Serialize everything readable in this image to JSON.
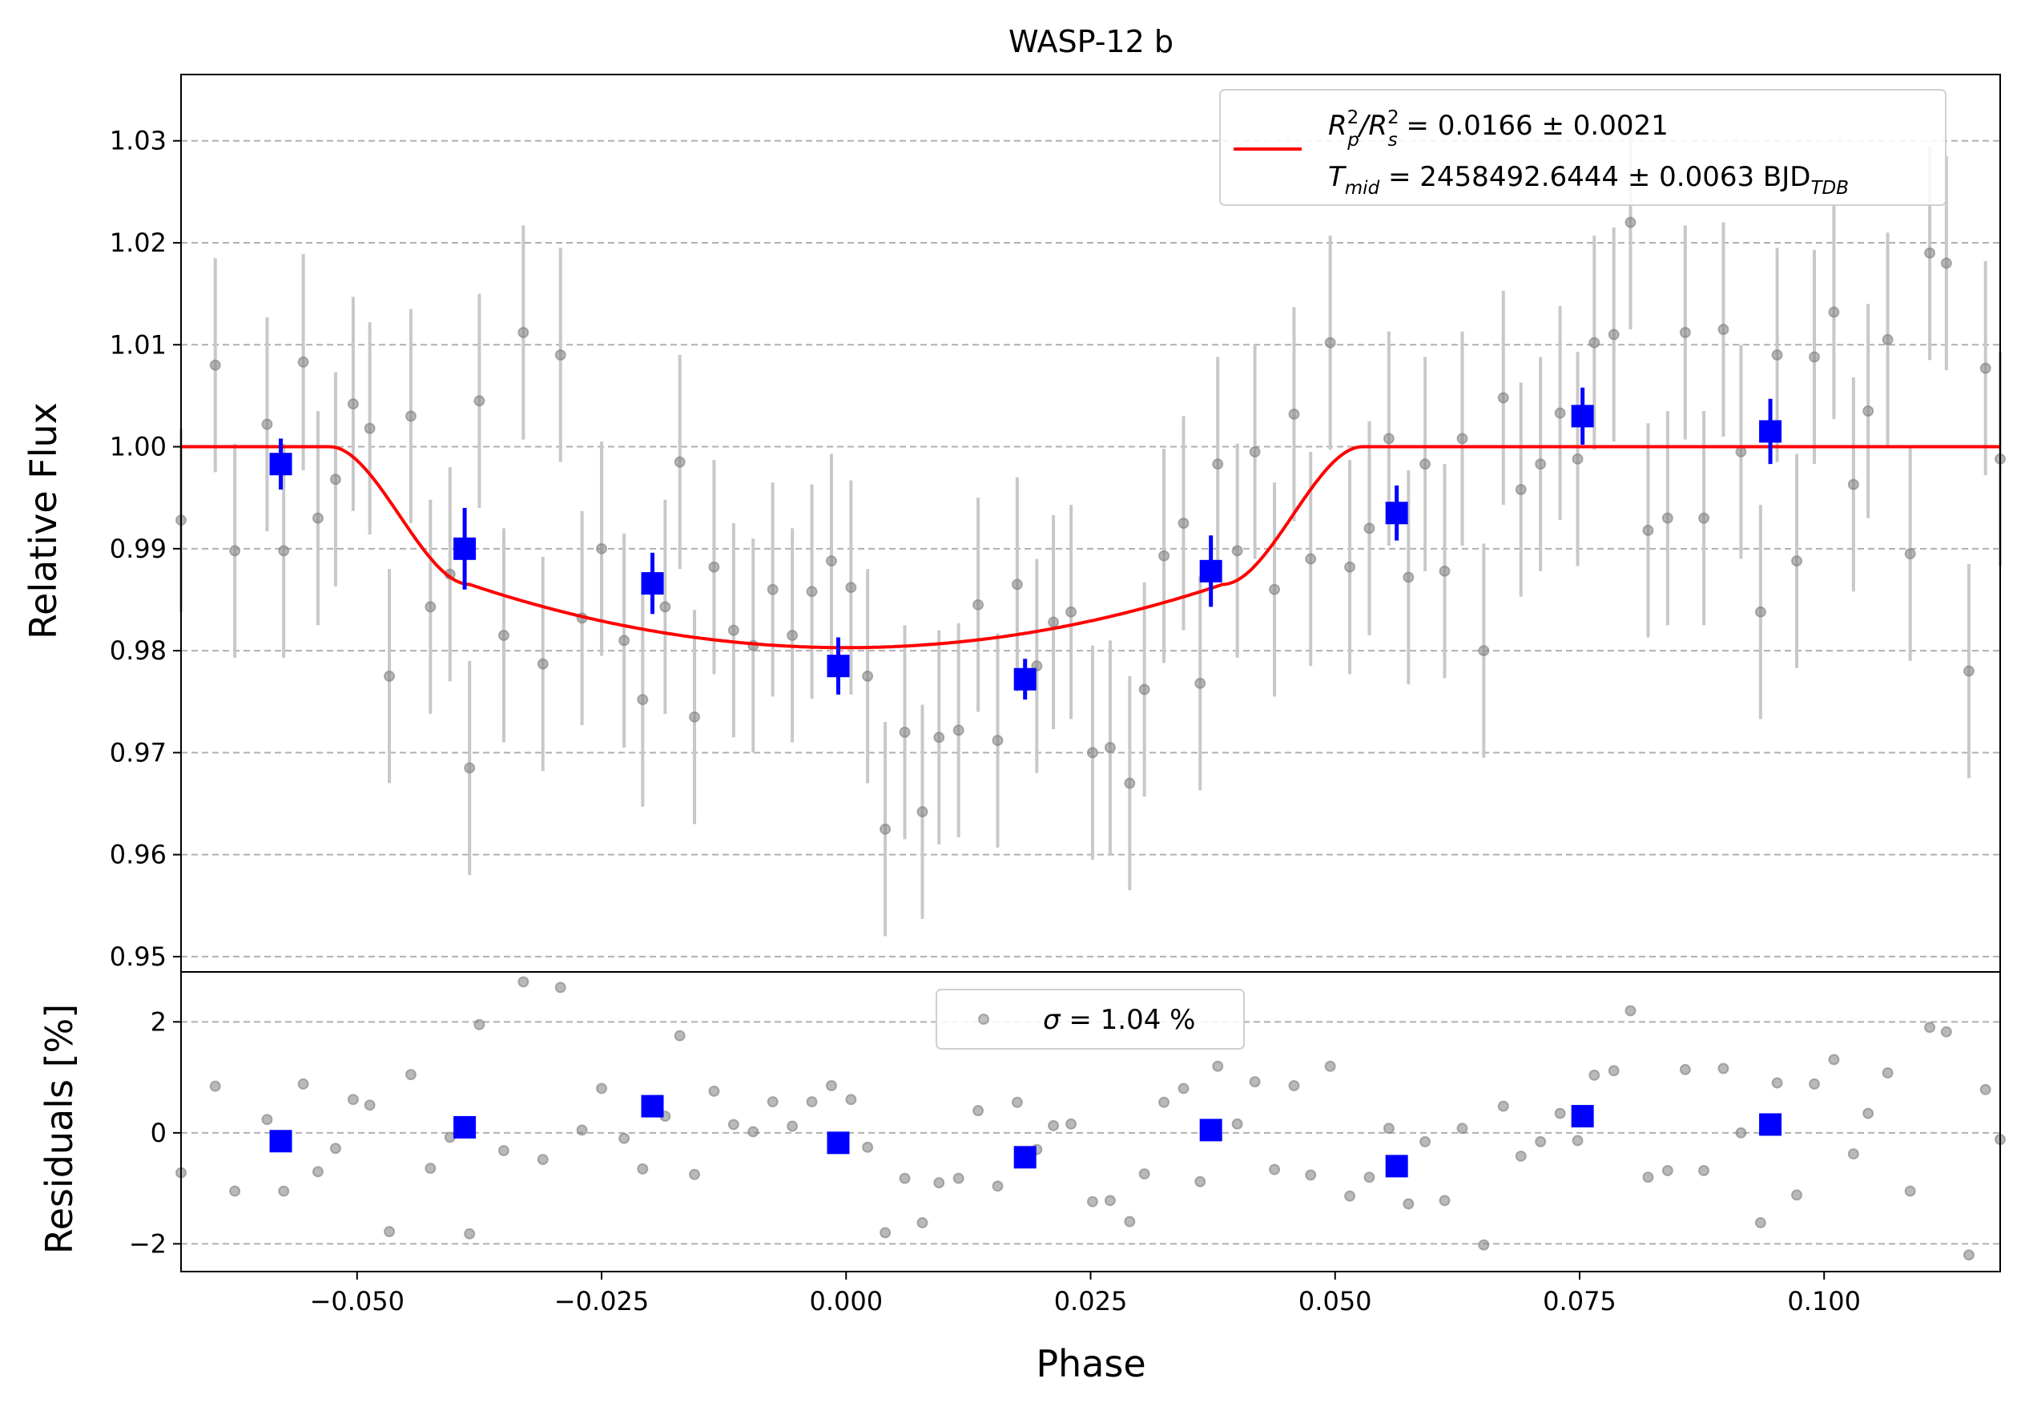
{
  "chart_data": {
    "type": "scatter",
    "title": "WASP-12 b",
    "xlabel": "Phase",
    "xlim": [
      -0.068,
      0.118
    ],
    "xticks": [
      -0.05,
      -0.025,
      0.0,
      0.025,
      0.05,
      0.075,
      0.1
    ],
    "xtick_labels": [
      "−0.050",
      "−0.025",
      "0.000",
      "0.025",
      "0.050",
      "0.075",
      "0.100"
    ],
    "grid": "horizontal dashed",
    "colors": {
      "raw": "#808080",
      "errorbar": "#c8c8c8",
      "binned": "#0000ff",
      "model": "#ff0000"
    },
    "flux_panel": {
      "ylabel": "Relative Flux",
      "ylim": [
        0.9485,
        1.0365
      ],
      "yticks": [
        0.95,
        0.96,
        0.97,
        0.98,
        0.99,
        1.0,
        1.01,
        1.02,
        1.03
      ],
      "ytick_labels": [
        "0.95",
        "0.96",
        "0.97",
        "0.98",
        "0.99",
        "1.00",
        "1.01",
        "1.02",
        "1.03"
      ],
      "legend": {
        "position": "top-right",
        "line1_a": "R",
        "line1_a_sup": "2",
        "line1_a_sub": "p",
        "line1_b": "/R",
        "line1_b_sup": "2",
        "line1_b_sub": "s",
        "line1_c": " = 0.0166 ± 0.0021",
        "line2_a": "T",
        "line2_a_sub": "mid",
        "line2_b": " = 2458492.6444 ± 0.0063 BJD",
        "line2_b_sub": "TDB"
      },
      "raw_points": [
        [
          -0.068,
          0.9928,
          0.009
        ],
        [
          -0.0645,
          1.008,
          0.0105
        ],
        [
          -0.0625,
          0.9898,
          0.0105
        ],
        [
          -0.0592,
          1.0022,
          0.0105
        ],
        [
          -0.0575,
          0.9898,
          0.0105
        ],
        [
          -0.0555,
          1.0083,
          0.0106
        ],
        [
          -0.054,
          0.993,
          0.0105
        ],
        [
          -0.0522,
          0.9968,
          0.0105
        ],
        [
          -0.0504,
          1.0042,
          0.0105
        ],
        [
          -0.0487,
          1.0018,
          0.0104
        ],
        [
          -0.0467,
          0.9775,
          0.0105
        ],
        [
          -0.0445,
          1.003,
          0.0105
        ],
        [
          -0.0425,
          0.9843,
          0.0105
        ],
        [
          -0.0405,
          0.9875,
          0.0105
        ],
        [
          -0.0385,
          0.9685,
          0.0105
        ],
        [
          -0.0375,
          1.0045,
          0.0105
        ],
        [
          -0.035,
          0.9815,
          0.0105
        ],
        [
          -0.033,
          1.0112,
          0.0105
        ],
        [
          -0.031,
          0.9787,
          0.0105
        ],
        [
          -0.0292,
          1.009,
          0.0105
        ],
        [
          -0.027,
          0.9832,
          0.0105
        ],
        [
          -0.025,
          0.99,
          0.0105
        ],
        [
          -0.0227,
          0.981,
          0.0105
        ],
        [
          -0.0208,
          0.9752,
          0.0105
        ],
        [
          -0.0185,
          0.9843,
          0.0105
        ],
        [
          -0.017,
          0.9985,
          0.0105
        ],
        [
          -0.0155,
          0.9735,
          0.0105
        ],
        [
          -0.0135,
          0.9882,
          0.0105
        ],
        [
          -0.0115,
          0.982,
          0.0105
        ],
        [
          -0.0095,
          0.9805,
          0.0105
        ],
        [
          -0.0075,
          0.986,
          0.0105
        ],
        [
          -0.0055,
          0.9815,
          0.0105
        ],
        [
          -0.0035,
          0.9858,
          0.0105
        ],
        [
          -0.0015,
          0.9888,
          0.0105
        ],
        [
          0.0005,
          0.9862,
          0.0105
        ],
        [
          0.0022,
          0.9775,
          0.0105
        ],
        [
          0.004,
          0.9625,
          0.0105
        ],
        [
          0.006,
          0.972,
          0.0105
        ],
        [
          0.0078,
          0.9642,
          0.0105
        ],
        [
          0.0095,
          0.9715,
          0.0105
        ],
        [
          0.0115,
          0.9722,
          0.0105
        ],
        [
          0.0135,
          0.9845,
          0.0105
        ],
        [
          0.0155,
          0.9712,
          0.0105
        ],
        [
          0.0175,
          0.9865,
          0.0105
        ],
        [
          0.0195,
          0.9785,
          0.0105
        ],
        [
          0.0212,
          0.9828,
          0.0105
        ],
        [
          0.023,
          0.9838,
          0.0105
        ],
        [
          0.0252,
          0.97,
          0.0105
        ],
        [
          0.027,
          0.9705,
          0.0105
        ],
        [
          0.029,
          0.967,
          0.0105
        ],
        [
          0.0305,
          0.9762,
          0.0105
        ],
        [
          0.0325,
          0.9893,
          0.0105
        ],
        [
          0.0345,
          0.9925,
          0.0105
        ],
        [
          0.0362,
          0.9768,
          0.0105
        ],
        [
          0.038,
          0.9983,
          0.0105
        ],
        [
          0.04,
          0.9898,
          0.0105
        ],
        [
          0.0418,
          0.9995,
          0.0105
        ],
        [
          0.0438,
          0.986,
          0.0105
        ],
        [
          0.0458,
          1.0032,
          0.0105
        ],
        [
          0.0475,
          0.989,
          0.0105
        ],
        [
          0.0495,
          1.0102,
          0.0105
        ],
        [
          0.0515,
          0.9882,
          0.0105
        ],
        [
          0.0535,
          0.992,
          0.0105
        ],
        [
          0.0555,
          1.0008,
          0.0105
        ],
        [
          0.0575,
          0.9872,
          0.0105
        ],
        [
          0.0592,
          0.9983,
          0.0105
        ],
        [
          0.0612,
          0.9878,
          0.0105
        ],
        [
          0.063,
          1.0008,
          0.0105
        ],
        [
          0.0652,
          0.98,
          0.0105
        ],
        [
          0.0672,
          1.0048,
          0.0105
        ],
        [
          0.069,
          0.9958,
          0.0105
        ],
        [
          0.071,
          0.9983,
          0.0105
        ],
        [
          0.073,
          1.0033,
          0.0105
        ],
        [
          0.0748,
          0.9988,
          0.0105
        ],
        [
          0.0765,
          1.0102,
          0.0105
        ],
        [
          0.0785,
          1.011,
          0.0105
        ],
        [
          0.0802,
          1.022,
          0.0105
        ],
        [
          0.082,
          0.9918,
          0.0105
        ],
        [
          0.084,
          0.993,
          0.0105
        ],
        [
          0.0858,
          1.0112,
          0.0105
        ],
        [
          0.0877,
          0.993,
          0.0105
        ],
        [
          0.0897,
          1.0115,
          0.0105
        ],
        [
          0.0915,
          0.9995,
          0.0105
        ],
        [
          0.0935,
          0.9838,
          0.0105
        ],
        [
          0.0952,
          1.009,
          0.0105
        ],
        [
          0.0972,
          0.9888,
          0.0105
        ],
        [
          0.099,
          1.0088,
          0.0105
        ],
        [
          0.101,
          1.0132,
          0.0105
        ],
        [
          0.103,
          0.9963,
          0.0105
        ],
        [
          0.1045,
          1.0035,
          0.0105
        ],
        [
          0.1065,
          1.0105,
          0.0105
        ],
        [
          0.1088,
          0.9895,
          0.0105
        ],
        [
          0.1108,
          1.019,
          0.0105
        ],
        [
          0.1125,
          1.018,
          0.0105
        ],
        [
          0.1148,
          0.978,
          0.0105
        ],
        [
          0.1165,
          1.0077,
          0.0105
        ],
        [
          0.118,
          0.9988,
          0.0105
        ]
      ],
      "binned_points": [
        [
          -0.0578,
          0.9983,
          0.0025
        ],
        [
          -0.039,
          0.99,
          0.004
        ],
        [
          -0.0198,
          0.9866,
          0.003
        ],
        [
          -0.0008,
          0.9785,
          0.0028
        ],
        [
          0.0183,
          0.9772,
          0.002
        ],
        [
          0.0373,
          0.9878,
          0.0035
        ],
        [
          0.0563,
          0.9935,
          0.0027
        ],
        [
          0.0753,
          1.003,
          0.0028
        ],
        [
          0.0945,
          1.0015,
          0.0032
        ]
      ],
      "model": {
        "baseline": 1.0,
        "depth_min": 0.9803,
        "center": 0.0,
        "t1": -0.0528,
        "t2": -0.0385,
        "t3": 0.0385,
        "t4": 0.0528
      }
    },
    "residual_panel": {
      "ylabel": "Residuals [%]",
      "ylim": [
        -2.5,
        2.9
      ],
      "yticks": [
        -2,
        0,
        2
      ],
      "ytick_labels": [
        "−2",
        "0",
        "2"
      ],
      "legend": {
        "position": "top-center",
        "sigma_symbol": "σ",
        "sigma_text": " = 1.04 %"
      },
      "raw_points": [
        [
          -0.068,
          -0.72
        ],
        [
          -0.0645,
          0.84
        ],
        [
          -0.0625,
          -1.05
        ],
        [
          -0.0592,
          0.24
        ],
        [
          -0.0575,
          -1.05
        ],
        [
          -0.0555,
          0.88
        ],
        [
          -0.054,
          -0.7
        ],
        [
          -0.0522,
          -0.28
        ],
        [
          -0.0504,
          0.6
        ],
        [
          -0.0487,
          0.5
        ],
        [
          -0.0467,
          -1.78
        ],
        [
          -0.0445,
          1.05
        ],
        [
          -0.0425,
          -0.64
        ],
        [
          -0.0405,
          -0.08
        ],
        [
          -0.0385,
          -1.82
        ],
        [
          -0.0375,
          1.95
        ],
        [
          -0.035,
          -0.32
        ],
        [
          -0.033,
          2.72
        ],
        [
          -0.031,
          -0.48
        ],
        [
          -0.0292,
          2.62
        ],
        [
          -0.027,
          0.05
        ],
        [
          -0.025,
          0.8
        ],
        [
          -0.0227,
          -0.1
        ],
        [
          -0.0208,
          -0.65
        ],
        [
          -0.0185,
          0.3
        ],
        [
          -0.017,
          1.75
        ],
        [
          -0.0155,
          -0.75
        ],
        [
          -0.0135,
          0.75
        ],
        [
          -0.0115,
          0.15
        ],
        [
          -0.0095,
          0.02
        ],
        [
          -0.0075,
          0.56
        ],
        [
          -0.0055,
          0.12
        ],
        [
          -0.0035,
          0.56
        ],
        [
          -0.0015,
          0.85
        ],
        [
          0.0005,
          0.6
        ],
        [
          0.0022,
          -0.26
        ],
        [
          0.004,
          -1.8
        ],
        [
          0.006,
          -0.82
        ],
        [
          0.0078,
          -1.62
        ],
        [
          0.0095,
          -0.9
        ],
        [
          0.0115,
          -0.82
        ],
        [
          0.0135,
          0.4
        ],
        [
          0.0155,
          -0.96
        ],
        [
          0.0175,
          0.55
        ],
        [
          0.0195,
          -0.3
        ],
        [
          0.0212,
          0.13
        ],
        [
          0.023,
          0.16
        ],
        [
          0.0252,
          -1.24
        ],
        [
          0.027,
          -1.22
        ],
        [
          0.029,
          -1.6
        ],
        [
          0.0305,
          -0.74
        ],
        [
          0.0325,
          0.55
        ],
        [
          0.0345,
          0.8
        ],
        [
          0.0362,
          -0.88
        ],
        [
          0.038,
          1.2
        ],
        [
          0.04,
          0.16
        ],
        [
          0.0418,
          0.92
        ],
        [
          0.0438,
          -0.66
        ],
        [
          0.0458,
          0.85
        ],
        [
          0.0475,
          -0.76
        ],
        [
          0.0495,
          1.2
        ],
        [
          0.0515,
          -1.14
        ],
        [
          0.0535,
          -0.8
        ],
        [
          0.0555,
          0.08
        ],
        [
          0.0575,
          -1.28
        ],
        [
          0.0592,
          -0.16
        ],
        [
          0.0612,
          -1.22
        ],
        [
          0.063,
          0.08
        ],
        [
          0.0652,
          -2.02
        ],
        [
          0.0672,
          0.48
        ],
        [
          0.069,
          -0.42
        ],
        [
          0.071,
          -0.16
        ],
        [
          0.073,
          0.35
        ],
        [
          0.0748,
          -0.14
        ],
        [
          0.0765,
          1.04
        ],
        [
          0.0785,
          1.12
        ],
        [
          0.0802,
          2.2
        ],
        [
          0.082,
          -0.8
        ],
        [
          0.084,
          -0.68
        ],
        [
          0.0858,
          1.14
        ],
        [
          0.0877,
          -0.68
        ],
        [
          0.0897,
          1.16
        ],
        [
          0.0915,
          0.0
        ],
        [
          0.0935,
          -1.62
        ],
        [
          0.0952,
          0.9
        ],
        [
          0.0972,
          -1.12
        ],
        [
          0.099,
          0.88
        ],
        [
          0.101,
          1.32
        ],
        [
          0.103,
          -0.38
        ],
        [
          0.1045,
          0.35
        ],
        [
          0.1065,
          1.08
        ],
        [
          0.1088,
          -1.05
        ],
        [
          0.1108,
          1.9
        ],
        [
          0.1125,
          1.82
        ],
        [
          0.1148,
          -2.2
        ],
        [
          0.1165,
          0.78
        ],
        [
          0.118,
          -0.12
        ]
      ],
      "binned_points": [
        [
          -0.0578,
          -0.15
        ],
        [
          -0.039,
          0.1
        ],
        [
          -0.0198,
          0.48
        ],
        [
          -0.0008,
          -0.18
        ],
        [
          0.0183,
          -0.44
        ],
        [
          0.0373,
          0.05
        ],
        [
          0.0563,
          -0.6
        ],
        [
          0.0753,
          0.3
        ],
        [
          0.0945,
          0.15
        ]
      ]
    }
  }
}
